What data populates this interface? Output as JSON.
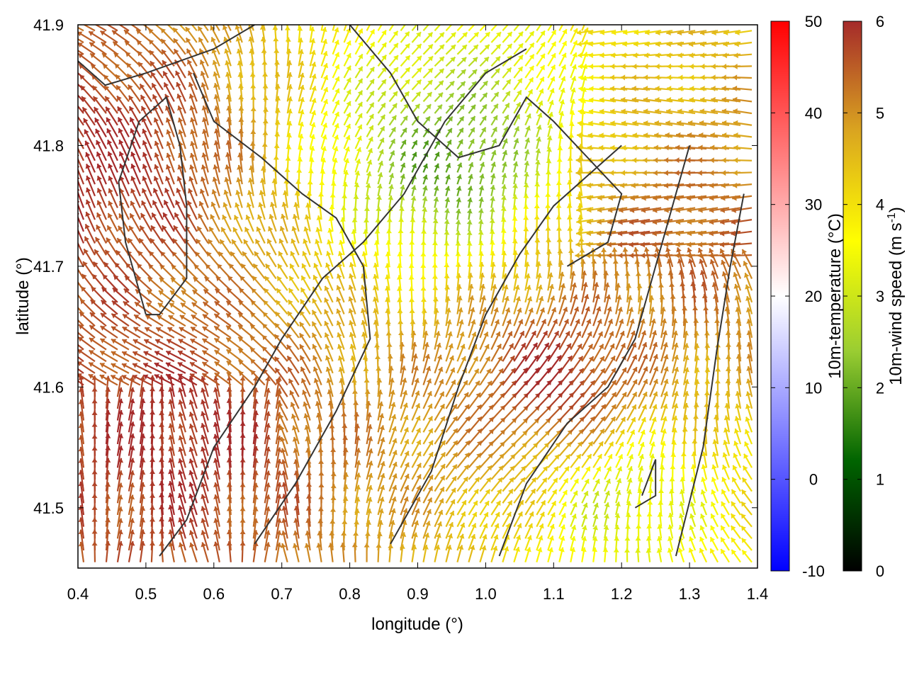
{
  "chart_data": {
    "type": "vector-field",
    "title": "",
    "xlabel": "longitude (°)",
    "ylabel": "latitude (°)",
    "xlim": [
      0.4,
      1.4
    ],
    "ylim": [
      41.45,
      41.9
    ],
    "x_ticks": [
      "0.4",
      "0.5",
      "0.6",
      "0.7",
      "0.8",
      "0.9",
      "1.0",
      "1.1",
      "1.2",
      "1.3",
      "1.4"
    ],
    "y_ticks": [
      "41.5",
      "41.6",
      "41.7",
      "41.8",
      "41.9"
    ],
    "colorbar_temperature": {
      "label": "10m-temperature (°C)",
      "range": [
        -10,
        50
      ],
      "ticks": [
        "-10",
        "0",
        "10",
        "20",
        "30",
        "40",
        "50"
      ],
      "colors": [
        "#0000ff",
        "#ffffff",
        "#ff0000"
      ]
    },
    "colorbar_wind": {
      "label": "10m-wind speed (m s",
      "label_sup": "-1",
      "label_end": ")",
      "range": [
        0,
        6
      ],
      "ticks": [
        "0",
        "1",
        "2",
        "3",
        "4",
        "5",
        "6"
      ],
      "colors": [
        "#000000",
        "#006400",
        "#9acd32",
        "#ffff00",
        "#daa520",
        "#a52a2a"
      ]
    },
    "contour_color": "#333333",
    "field_regions": [
      {
        "name": "calm-north",
        "lon": 0.95,
        "lat": 41.78,
        "speed": 1.8
      },
      {
        "name": "strong-southwest",
        "lon": 0.55,
        "lat": 41.55,
        "speed": 6.0
      },
      {
        "name": "strong-west-coast",
        "lon": 0.45,
        "lat": 41.78,
        "speed": 6.0
      },
      {
        "name": "strong-southeast",
        "lon": 1.1,
        "lat": 41.6,
        "speed": 6.0
      },
      {
        "name": "strong-east",
        "lon": 1.3,
        "lat": 41.72,
        "speed": 5.5
      },
      {
        "name": "moderate-south",
        "lon": 1.2,
        "lat": 41.5,
        "speed": 3.0
      }
    ]
  }
}
